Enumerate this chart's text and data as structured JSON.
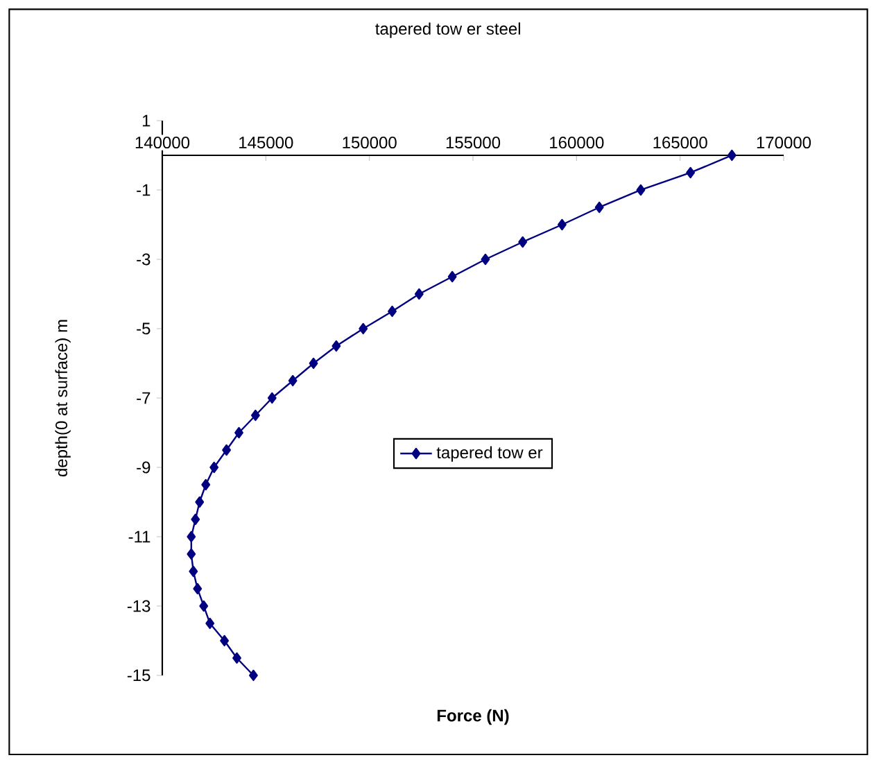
{
  "chart_data": {
    "type": "line",
    "title": "tapered tow er steel",
    "xlabel": "Force (N)",
    "ylabel": "depth(0 at surface) m",
    "series": [
      {
        "name": "tapered tow er",
        "color": "#000080",
        "marker": "diamond",
        "x": [
          167500,
          165500,
          163100,
          161100,
          159300,
          157400,
          155600,
          154000,
          152400,
          151100,
          149700,
          148400,
          147300,
          146300,
          145300,
          144500,
          143700,
          143100,
          142500,
          142100,
          141800,
          141600,
          141400,
          141400,
          141500,
          141700,
          142000,
          142300,
          143000,
          143600,
          144400
        ],
        "values": [
          0,
          -0.5,
          -1,
          -1.5,
          -2,
          -2.5,
          -3,
          -3.5,
          -4,
          -4.5,
          -5,
          -5.5,
          -6,
          -6.5,
          -7,
          -7.5,
          -8,
          -8.5,
          -9,
          -9.5,
          -10,
          -10.5,
          -11,
          -11.5,
          -12,
          -12.5,
          -13,
          -13.5,
          -14,
          -14.5,
          -15
        ]
      }
    ],
    "xlim": [
      140000,
      170000
    ],
    "xticks": [
      140000,
      145000,
      150000,
      155000,
      160000,
      165000,
      170000
    ],
    "ylim": [
      -15,
      1
    ],
    "yticks": [
      1,
      -1,
      -3,
      -5,
      -7,
      -9,
      -11,
      -13,
      -15
    ],
    "grid": false,
    "legend": "center"
  }
}
